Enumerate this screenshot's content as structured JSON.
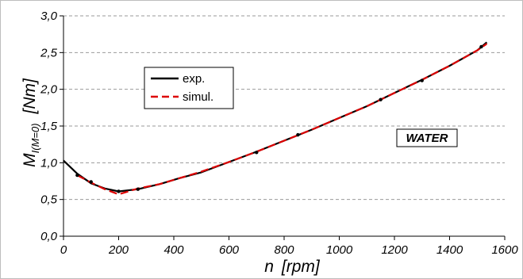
{
  "chart_data": {
    "type": "line",
    "xlabel_var": "n",
    "xlabel_unit": "[rpm]",
    "ylabel_var": "M",
    "ylabel_sub": "I(M=0)",
    "ylabel_unit": "[Nm]",
    "xlim": [
      0,
      1600
    ],
    "ylim": [
      0.0,
      3.0
    ],
    "x_ticks": [
      0,
      200,
      400,
      600,
      800,
      1000,
      1200,
      1400,
      1600
    ],
    "y_ticks": [
      "0,0",
      "0,5",
      "1,0",
      "1,5",
      "2,0",
      "2,5",
      "3,0"
    ],
    "y_tick_values": [
      0.0,
      0.5,
      1.0,
      1.5,
      2.0,
      2.5,
      3.0
    ],
    "grid": "horizontal dashed",
    "legend_position": "upper-left",
    "annotation": "WATER",
    "series": [
      {
        "name": "exp.",
        "color": "#000000",
        "style": "solid",
        "x": [
          0,
          50,
          100,
          150,
          200,
          270,
          350,
          420,
          500,
          600,
          700,
          800,
          900,
          1000,
          1100,
          1200,
          1300,
          1400,
          1500,
          1535
        ],
        "y": [
          1.03,
          0.85,
          0.72,
          0.65,
          0.61,
          0.64,
          0.71,
          0.79,
          0.87,
          1.01,
          1.15,
          1.3,
          1.45,
          1.61,
          1.77,
          1.95,
          2.13,
          2.32,
          2.53,
          2.64
        ]
      },
      {
        "name": "simul.",
        "color": "#dd0000",
        "style": "dashed",
        "x": [
          50,
          100,
          150,
          200,
          270,
          350,
          420,
          500,
          600,
          700,
          800,
          900,
          1000,
          1100,
          1200,
          1300,
          1400,
          1500,
          1535
        ],
        "y": [
          0.83,
          0.73,
          0.64,
          0.57,
          0.65,
          0.71,
          0.79,
          0.88,
          1.01,
          1.15,
          1.3,
          1.45,
          1.61,
          1.77,
          1.95,
          2.13,
          2.32,
          2.53,
          2.62
        ]
      }
    ],
    "exp_markers": {
      "x": [
        50,
        100,
        200,
        270,
        700,
        850,
        1150,
        1300,
        1515
      ],
      "y": [
        0.83,
        0.74,
        0.61,
        0.64,
        1.14,
        1.38,
        1.86,
        2.12,
        2.58
      ]
    }
  }
}
